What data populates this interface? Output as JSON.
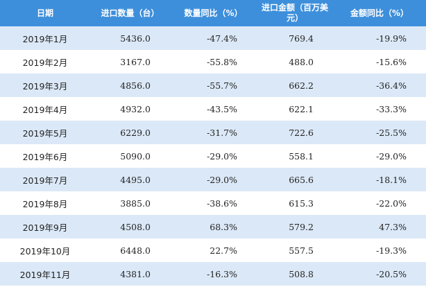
{
  "table": {
    "header": [
      "日期",
      "进口数量（台）",
      "数量同比（%）",
      "进口金额（百万美元）",
      "金额同比（%）"
    ],
    "rows": [
      [
        "2019年1月",
        "5436.0",
        "-47.4%",
        "769.4",
        "-19.9%"
      ],
      [
        "2019年2月",
        "3167.0",
        "-55.8%",
        "488.0",
        "-15.6%"
      ],
      [
        "2019年3月",
        "4856.0",
        "-55.7%",
        "662.2",
        "-36.4%"
      ],
      [
        "2019年4月",
        "4932.0",
        "-43.5%",
        "622.1",
        "-33.3%"
      ],
      [
        "2019年5月",
        "6229.0",
        "-31.7%",
        "722.6",
        "-25.5%"
      ],
      [
        "2019年6月",
        "5090.0",
        "-29.0%",
        "558.1",
        "-29.0%"
      ],
      [
        "2019年7月",
        "4495.0",
        "-29.0%",
        "665.6",
        "-18.1%"
      ],
      [
        "2019年8月",
        "3885.0",
        "-38.6%",
        "615.3",
        "-22.0%"
      ],
      [
        "2019年9月",
        "4508.0",
        "68.3%",
        "579.2",
        "47.3%"
      ],
      [
        "2019年10月",
        "6448.0",
        "22.7%",
        "557.5",
        "-19.3%"
      ],
      [
        "2019年11月",
        "4381.0",
        "-16.3%",
        "508.8",
        "-20.5%"
      ]
    ]
  }
}
